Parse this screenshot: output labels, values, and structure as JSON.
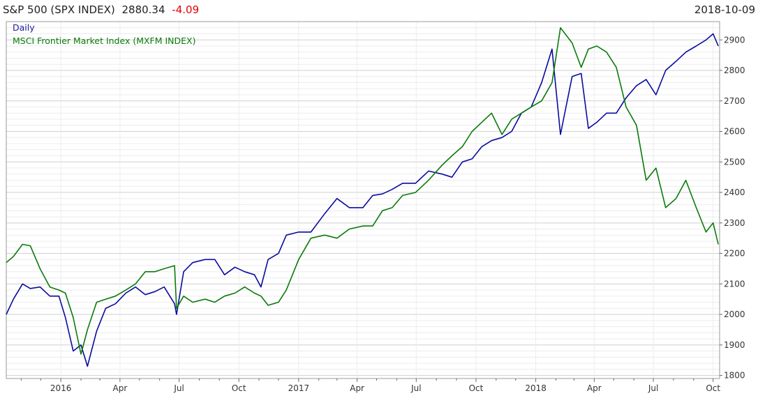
{
  "header": {
    "title": "S&P 500 (SPX INDEX)",
    "price": "2880.34",
    "change": "-4.09",
    "date": "2018-10-09"
  },
  "legend": {
    "period": "Daily",
    "series_label": "MSCI Frontier Market Index (MXFM INDEX)"
  },
  "colors": {
    "spx": "#0a0aa0",
    "mxfm": "#0a7a0a",
    "change": "#e00000",
    "grid_major": "#cfcfcf",
    "grid_minor": "#ececec"
  },
  "chart_data": {
    "type": "line",
    "title": "S&P 500 (SPX INDEX) 2880.34 -4.09",
    "x_axis_labels": [
      "2016",
      "Apr",
      "Jul",
      "Oct",
      "2017",
      "Apr",
      "Jul",
      "Oct",
      "2018",
      "Apr",
      "Jul",
      "Oct"
    ],
    "y_tick_labels": [
      "1800",
      "1900",
      "2000",
      "2100",
      "2200",
      "2300",
      "2400",
      "2500",
      "2600",
      "2700",
      "2800",
      "2900"
    ],
    "ylim": [
      1790,
      2960
    ],
    "grid": true,
    "legend_position": "top-left",
    "series": [
      {
        "key": "spx",
        "x": [
          "2015-10-09",
          "2015-10-20",
          "2015-11-03",
          "2015-11-15",
          "2015-11-30",
          "2015-12-15",
          "2015-12-29",
          "2016-01-08",
          "2016-01-20",
          "2016-02-01",
          "2016-02-11",
          "2016-02-25",
          "2016-03-10",
          "2016-03-25",
          "2016-04-10",
          "2016-04-25",
          "2016-05-10",
          "2016-05-25",
          "2016-06-08",
          "2016-06-24",
          "2016-06-27",
          "2016-07-08",
          "2016-07-22",
          "2016-08-10",
          "2016-08-25",
          "2016-09-09",
          "2016-09-25",
          "2016-10-10",
          "2016-10-25",
          "2016-11-04",
          "2016-11-15",
          "2016-12-01",
          "2016-12-13",
          "2017-01-01",
          "2017-01-20",
          "2017-02-10",
          "2017-03-01",
          "2017-03-20",
          "2017-04-10",
          "2017-04-25",
          "2017-05-10",
          "2017-05-25",
          "2017-06-10",
          "2017-06-30",
          "2017-07-20",
          "2017-08-10",
          "2017-08-25",
          "2017-09-10",
          "2017-09-25",
          "2017-10-10",
          "2017-10-25",
          "2017-11-10",
          "2017-11-25",
          "2017-12-10",
          "2017-12-25",
          "2018-01-10",
          "2018-01-26",
          "2018-02-08",
          "2018-02-26",
          "2018-03-12",
          "2018-03-23",
          "2018-04-05",
          "2018-04-20",
          "2018-05-05",
          "2018-05-20",
          "2018-06-05",
          "2018-06-20",
          "2018-07-05",
          "2018-07-20",
          "2018-08-05",
          "2018-08-20",
          "2018-09-05",
          "2018-09-20",
          "2018-10-01",
          "2018-10-09"
        ],
        "y": [
          2000,
          2050,
          2100,
          2085,
          2090,
          2060,
          2060,
          1990,
          1880,
          1900,
          1830,
          1945,
          2020,
          2035,
          2070,
          2090,
          2065,
          2075,
          2090,
          2035,
          2000,
          2140,
          2170,
          2180,
          2180,
          2130,
          2155,
          2140,
          2130,
          2090,
          2180,
          2200,
          2260,
          2270,
          2270,
          2330,
          2380,
          2350,
          2350,
          2390,
          2395,
          2410,
          2430,
          2430,
          2470,
          2460,
          2450,
          2500,
          2510,
          2550,
          2570,
          2580,
          2600,
          2660,
          2680,
          2760,
          2870,
          2590,
          2780,
          2790,
          2610,
          2630,
          2660,
          2660,
          2710,
          2750,
          2770,
          2720,
          2800,
          2830,
          2860,
          2880,
          2900,
          2920,
          2880
        ]
      },
      {
        "key": "mxfm",
        "x": [
          "2015-10-09",
          "2015-10-20",
          "2015-11-03",
          "2015-11-15",
          "2015-11-30",
          "2015-12-15",
          "2015-12-29",
          "2016-01-08",
          "2016-01-20",
          "2016-02-01",
          "2016-02-11",
          "2016-02-25",
          "2016-03-10",
          "2016-03-25",
          "2016-04-10",
          "2016-04-25",
          "2016-05-10",
          "2016-05-25",
          "2016-06-08",
          "2016-06-24",
          "2016-06-27",
          "2016-07-08",
          "2016-07-22",
          "2016-08-10",
          "2016-08-25",
          "2016-09-09",
          "2016-09-25",
          "2016-10-10",
          "2016-10-25",
          "2016-11-04",
          "2016-11-15",
          "2016-12-01",
          "2016-12-13",
          "2017-01-01",
          "2017-01-20",
          "2017-02-10",
          "2017-03-01",
          "2017-03-20",
          "2017-04-10",
          "2017-04-25",
          "2017-05-10",
          "2017-05-25",
          "2017-06-10",
          "2017-06-30",
          "2017-07-20",
          "2017-08-10",
          "2017-08-25",
          "2017-09-10",
          "2017-09-25",
          "2017-10-10",
          "2017-10-25",
          "2017-11-10",
          "2017-11-25",
          "2017-12-10",
          "2017-12-25",
          "2018-01-10",
          "2018-01-26",
          "2018-02-08",
          "2018-02-26",
          "2018-03-12",
          "2018-03-23",
          "2018-04-05",
          "2018-04-20",
          "2018-05-05",
          "2018-05-20",
          "2018-06-05",
          "2018-06-20",
          "2018-07-05",
          "2018-07-20",
          "2018-08-05",
          "2018-08-20",
          "2018-09-05",
          "2018-09-20",
          "2018-10-01",
          "2018-10-09"
        ],
        "y": [
          2170,
          2190,
          2230,
          2225,
          2150,
          2090,
          2080,
          2070,
          1990,
          1870,
          1950,
          2040,
          2050,
          2060,
          2080,
          2100,
          2140,
          2140,
          2150,
          2160,
          2020,
          2060,
          2040,
          2050,
          2040,
          2060,
          2070,
          2090,
          2070,
          2060,
          2030,
          2040,
          2080,
          2180,
          2250,
          2260,
          2250,
          2280,
          2290,
          2290,
          2340,
          2350,
          2390,
          2400,
          2440,
          2490,
          2520,
          2550,
          2600,
          2630,
          2660,
          2590,
          2640,
          2660,
          2680,
          2700,
          2760,
          2940,
          2890,
          2810,
          2870,
          2880,
          2860,
          2810,
          2680,
          2620,
          2440,
          2480,
          2350,
          2380,
          2440,
          2350,
          2270,
          2300,
          2230
        ]
      }
    ]
  }
}
